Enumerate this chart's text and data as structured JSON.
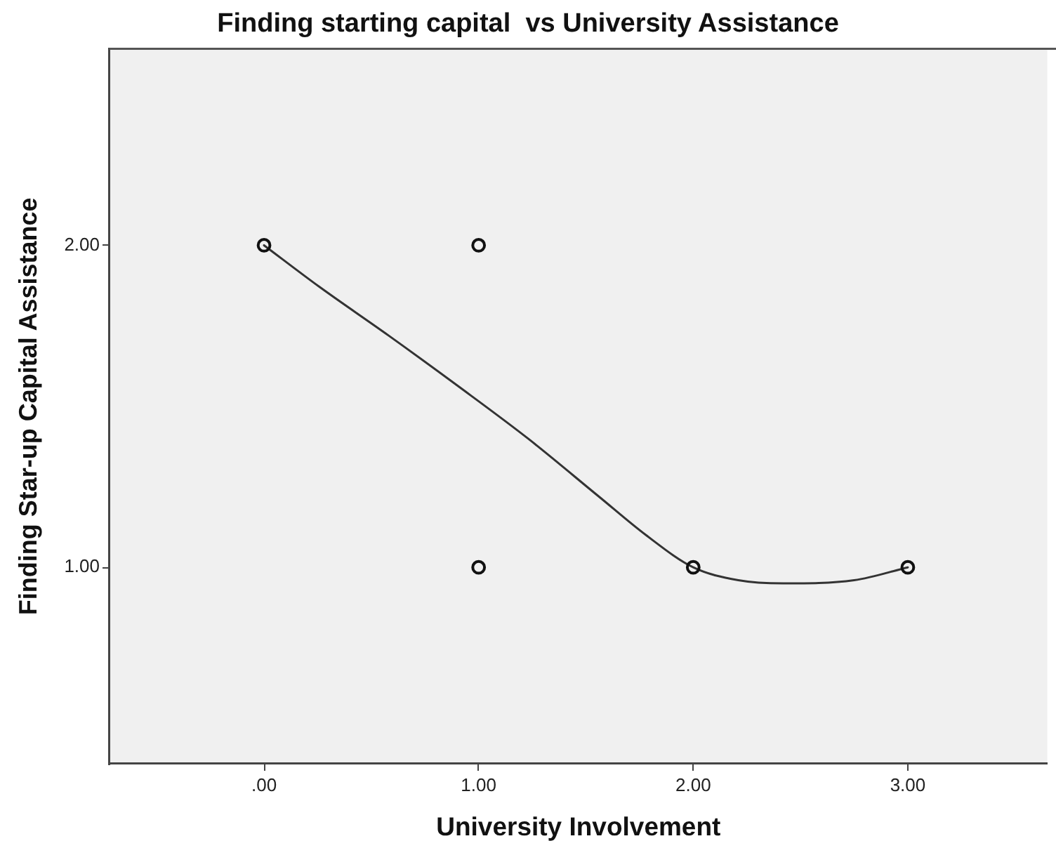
{
  "chart_data": {
    "type": "scatter",
    "title": "Finding starting capital  vs University Assistance",
    "xlabel": "University Involvement",
    "ylabel": "Finding Star-up Capital Assistance",
    "series": [
      {
        "color": "#111111",
        "x": [
          0,
          1,
          1,
          2,
          3
        ],
        "values": [
          2,
          2,
          1,
          1,
          1
        ]
      },
      {
        "type": "line",
        "color": "#333333",
        "marker": "none",
        "line_style": "solid",
        "x": [
          0,
          0.26,
          0.58,
          0.91,
          1.23,
          1.56,
          1.78,
          2,
          2.21,
          2.42,
          2.75,
          3
        ],
        "values": [
          2,
          1.87,
          1.72,
          1.56,
          1.4,
          1.22,
          1.1,
          1,
          0.96,
          0.95,
          0.96,
          1
        ]
      }
    ],
    "xlim": [
      -0.72,
      3.65
    ],
    "ylim": [
      0.39,
      2.61
    ],
    "xticks": [
      {
        "value": 0,
        "label": ".00"
      },
      {
        "value": 1,
        "label": "1.00"
      },
      {
        "value": 2,
        "label": "2.00"
      },
      {
        "value": 3,
        "label": "3.00"
      }
    ],
    "yticks": [
      {
        "value": 1,
        "label": "1.00"
      },
      {
        "value": 2,
        "label": "2.00"
      }
    ],
    "grid": false,
    "legend": false,
    "marker": "circle"
  }
}
